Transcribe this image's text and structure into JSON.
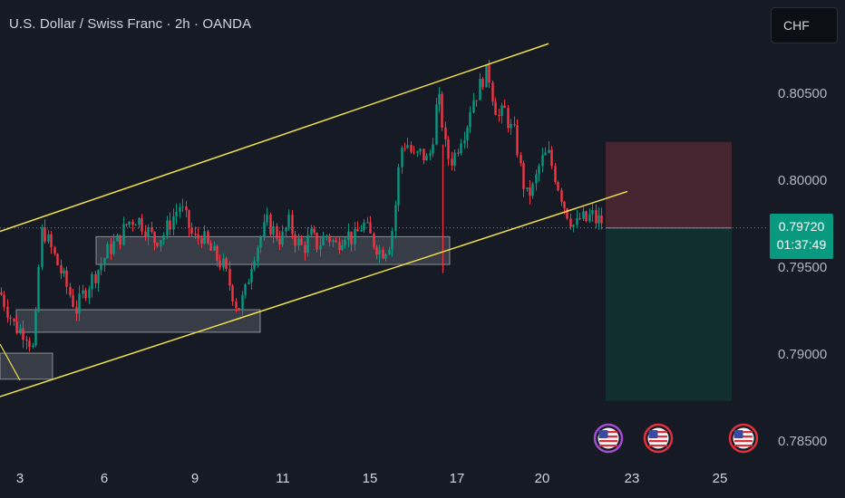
{
  "header": {
    "title": "U.S. Dollar / Swiss Franc · 2h · OANDA",
    "currency": "CHF"
  },
  "last_price": {
    "value": "0.79720",
    "countdown": "01:37:49"
  },
  "colors": {
    "background": "#161a25",
    "up": "#089981",
    "down": "#f23645",
    "channel": "#f0e04a",
    "stop_zone": "#4a2630",
    "target_zone": "#12302f"
  },
  "chart_data": {
    "type": "candlestick",
    "symbol": "USDCHF",
    "interval": "2h",
    "ylim": [
      0.782,
      0.8095
    ],
    "y_ticks": [
      "0.80500",
      "0.80000",
      "0.79500",
      "0.79000",
      "0.78500"
    ],
    "x_ticks": [
      "3",
      "6",
      "9",
      "11",
      "15",
      "17",
      "20",
      "23",
      "25"
    ],
    "price_path": [
      [
        0,
        0.7935
      ],
      [
        8,
        0.7925
      ],
      [
        16,
        0.7915
      ],
      [
        28,
        0.7912
      ],
      [
        36,
        0.7902
      ],
      [
        40,
        0.7925
      ],
      [
        44,
        0.7965
      ],
      [
        47,
        0.7972
      ],
      [
        52,
        0.7965
      ],
      [
        60,
        0.7955
      ],
      [
        68,
        0.7945
      ],
      [
        76,
        0.7935
      ],
      [
        84,
        0.7925
      ],
      [
        92,
        0.7935
      ],
      [
        100,
        0.7942
      ],
      [
        110,
        0.795
      ],
      [
        120,
        0.796
      ],
      [
        130,
        0.7965
      ],
      [
        140,
        0.7975
      ],
      [
        150,
        0.7978
      ],
      [
        160,
        0.7972
      ],
      [
        170,
        0.7965
      ],
      [
        180,
        0.7968
      ],
      [
        190,
        0.7978
      ],
      [
        198,
        0.7985
      ],
      [
        206,
        0.7975
      ],
      [
        214,
        0.7965
      ],
      [
        222,
        0.7968
      ],
      [
        230,
        0.796
      ],
      [
        238,
        0.7955
      ],
      [
        246,
        0.795
      ],
      [
        254,
        0.7938
      ],
      [
        262,
        0.7925
      ],
      [
        270,
        0.7935
      ],
      [
        278,
        0.7955
      ],
      [
        286,
        0.7965
      ],
      [
        294,
        0.7975
      ],
      [
        302,
        0.797
      ],
      [
        310,
        0.7965
      ],
      [
        318,
        0.7975
      ],
      [
        326,
        0.7965
      ],
      [
        334,
        0.796
      ],
      [
        342,
        0.7968
      ],
      [
        350,
        0.7962
      ],
      [
        360,
        0.7968
      ],
      [
        370,
        0.7962
      ],
      [
        380,
        0.797
      ],
      [
        390,
        0.7965
      ],
      [
        400,
        0.7975
      ],
      [
        410,
        0.7965
      ],
      [
        420,
        0.7958
      ],
      [
        428,
        0.7962
      ],
      [
        434,
        0.7975
      ],
      [
        438,
        0.8
      ],
      [
        442,
        0.8018
      ],
      [
        448,
        0.8022
      ],
      [
        456,
        0.8012
      ],
      [
        464,
        0.8015
      ],
      [
        472,
        0.801
      ],
      [
        478,
        0.8028
      ],
      [
        482,
        0.8048
      ],
      [
        486,
        0.804
      ],
      [
        490,
        0.802
      ],
      [
        496,
        0.801
      ],
      [
        502,
        0.8015
      ],
      [
        508,
        0.8025
      ],
      [
        514,
        0.803
      ],
      [
        520,
        0.8045
      ],
      [
        526,
        0.805
      ],
      [
        532,
        0.8058
      ],
      [
        538,
        0.8062
      ],
      [
        544,
        0.8045
      ],
      [
        550,
        0.8035
      ],
      [
        556,
        0.804
      ],
      [
        562,
        0.803
      ],
      [
        568,
        0.8025
      ],
      [
        574,
        0.8005
      ],
      [
        580,
        0.799
      ],
      [
        588,
        0.7995
      ],
      [
        596,
        0.801
      ],
      [
        604,
        0.8015
      ],
      [
        610,
        0.8005
      ],
      [
        616,
        0.7995
      ],
      [
        622,
        0.7985
      ],
      [
        628,
        0.7978
      ],
      [
        634,
        0.7972
      ],
      [
        640,
        0.7978
      ],
      [
        646,
        0.7976
      ],
      [
        652,
        0.798
      ],
      [
        658,
        0.7975
      ],
      [
        662,
        0.7978
      ],
      [
        666,
        0.7972
      ]
    ],
    "channel_lines": [
      {
        "from": [
          0,
          0.797
        ],
        "to": [
          605,
          0.8078
        ]
      },
      {
        "from": [
          0,
          0.7875
        ],
        "to": [
          692,
          0.7993
        ]
      }
    ],
    "zones": [
      {
        "x": [
          0,
          58
        ],
        "y": [
          0.7885,
          0.79
        ]
      },
      {
        "x": [
          18,
          287
        ],
        "y": [
          0.7912,
          0.7925
        ]
      },
      {
        "x": [
          106,
          496
        ],
        "y": [
          0.7951,
          0.7967
        ]
      }
    ],
    "position": {
      "entry": 0.7972,
      "stop": 0.80215,
      "target": 0.78725,
      "x": [
        668,
        807
      ]
    },
    "events": [
      {
        "x": 671,
        "label": "US"
      },
      {
        "x": 726,
        "label": "US"
      },
      {
        "x": 820,
        "label": "US"
      }
    ]
  }
}
